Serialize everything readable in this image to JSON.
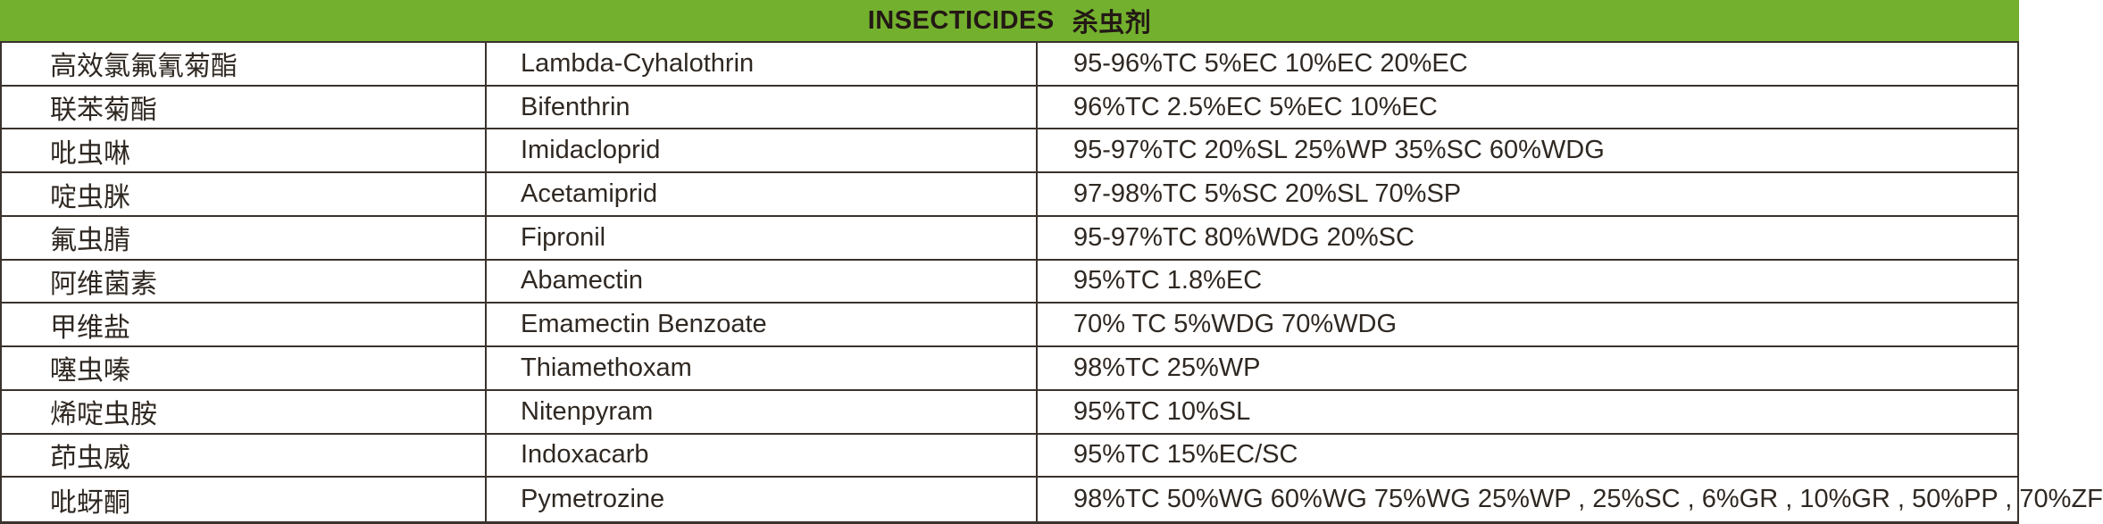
{
  "header": {
    "title_en": "INSECTICIDES",
    "title_zh": "杀虫剂"
  },
  "colors": {
    "header_green": "#73B02E",
    "border": "#3A322C",
    "text": "#2F2822",
    "header_text": "#231815"
  },
  "table": {
    "columns": [
      "chinese_name",
      "english_name",
      "specifications"
    ],
    "rows": [
      {
        "cn": "高效氯氟氰菊酯",
        "en": "Lambda-Cyhalothrin",
        "specs": "95-96%TC 5%EC 10%EC 20%EC"
      },
      {
        "cn": "联苯菊酯",
        "en": "Bifenthrin",
        "specs": "96%TC 2.5%EC 5%EC 10%EC"
      },
      {
        "cn": "吡虫啉",
        "en": "Imidacloprid",
        "specs": "95-97%TC 20%SL 25%WP 35%SC 60%WDG"
      },
      {
        "cn": "啶虫脒",
        "en": "Acetamiprid",
        "specs": "97-98%TC 5%SC 20%SL 70%SP"
      },
      {
        "cn": "氟虫腈",
        "en": "Fipronil",
        "specs": "95-97%TC 80%WDG 20%SC"
      },
      {
        "cn": "阿维菌素",
        "en": "Abamectin",
        "specs": "95%TC 1.8%EC"
      },
      {
        "cn": "甲维盐",
        "en": "Emamectin Benzoate",
        "specs": "70% TC 5%WDG 70%WDG"
      },
      {
        "cn": "噻虫嗪",
        "en": "Thiamethoxam",
        "specs": "98%TC 25%WP"
      },
      {
        "cn": "烯啶虫胺",
        "en": "Nitenpyram",
        "specs": "95%TC 10%SL"
      },
      {
        "cn": "茚虫威",
        "en": "Indoxacarb",
        "specs": "95%TC 15%EC/SC"
      },
      {
        "cn": "吡蚜酮",
        "en": "Pymetrozine",
        "specs": "98%TC 50%WG 60%WG 75%WG 25%WP , 25%SC , 6%GR , 10%GR , 50%PP , 70%ZF"
      }
    ]
  }
}
